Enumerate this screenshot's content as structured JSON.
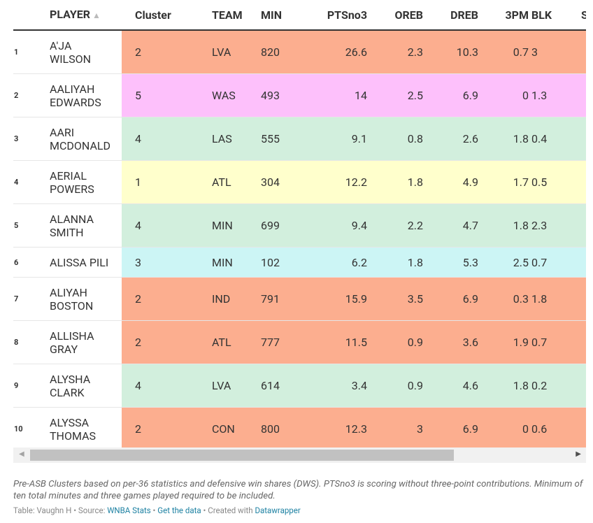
{
  "colors": {
    "cluster_1": "#ffffcc",
    "cluster_2": "#fcae8f",
    "cluster_3": "#ccf5f5",
    "cluster_4": "#d2efdd",
    "cluster_5": "#fdc0fb",
    "link": "#1d81a2"
  },
  "table": {
    "headers": {
      "player": "PLAYER",
      "sort_icon": "▲",
      "cluster": "Cluster",
      "team": "TEAM",
      "min": "MIN",
      "pts": "PTSno3",
      "oreb": "OREB",
      "dreb": "DREB",
      "tpm": "3PM",
      "blk": "BLK",
      "s": "S"
    },
    "rows": [
      {
        "rank": "1",
        "player_line1": "A'JA",
        "player_line2": "WILSON",
        "cluster": "2",
        "team": "LVA",
        "min": "820",
        "pts": "26.6",
        "oreb": "2.3",
        "dreb": "10.3",
        "tpm": "0.7",
        "blk": "3"
      },
      {
        "rank": "2",
        "player_line1": "AALIYAH",
        "player_line2": "EDWARDS",
        "cluster": "5",
        "team": "WAS",
        "min": "493",
        "pts": "14",
        "oreb": "2.5",
        "dreb": "6.9",
        "tpm": "0",
        "blk": "1.3"
      },
      {
        "rank": "3",
        "player_line1": "AARI",
        "player_line2": "MCDONALD",
        "cluster": "4",
        "team": "LAS",
        "min": "555",
        "pts": "9.1",
        "oreb": "0.8",
        "dreb": "2.6",
        "tpm": "1.8",
        "blk": "0.4"
      },
      {
        "rank": "4",
        "player_line1": "AERIAL",
        "player_line2": "POWERS",
        "cluster": "1",
        "team": "ATL",
        "min": "304",
        "pts": "12.2",
        "oreb": "1.8",
        "dreb": "4.9",
        "tpm": "1.7",
        "blk": "0.5"
      },
      {
        "rank": "5",
        "player_line1": "ALANNA",
        "player_line2": "SMITH",
        "cluster": "4",
        "team": "MIN",
        "min": "699",
        "pts": "9.4",
        "oreb": "2.2",
        "dreb": "4.7",
        "tpm": "1.8",
        "blk": "2.3"
      },
      {
        "rank": "6",
        "player_line1": "ALISSA PILI",
        "player_line2": "",
        "cluster": "3",
        "team": "MIN",
        "min": "102",
        "pts": "6.2",
        "oreb": "1.8",
        "dreb": "5.3",
        "tpm": "2.5",
        "blk": "0.7"
      },
      {
        "rank": "7",
        "player_line1": "ALIYAH",
        "player_line2": "BOSTON",
        "cluster": "2",
        "team": "IND",
        "min": "791",
        "pts": "15.9",
        "oreb": "3.5",
        "dreb": "6.9",
        "tpm": "0.3",
        "blk": "1.8"
      },
      {
        "rank": "8",
        "player_line1": "ALLISHA",
        "player_line2": "GRAY",
        "cluster": "2",
        "team": "ATL",
        "min": "777",
        "pts": "11.5",
        "oreb": "0.9",
        "dreb": "3.6",
        "tpm": "1.9",
        "blk": "0.7"
      },
      {
        "rank": "9",
        "player_line1": "ALYSHA",
        "player_line2": "CLARK",
        "cluster": "4",
        "team": "LVA",
        "min": "614",
        "pts": "3.4",
        "oreb": "0.9",
        "dreb": "4.6",
        "tpm": "1.8",
        "blk": "0.2"
      },
      {
        "rank": "10",
        "player_line1": "ALYSSA",
        "player_line2": "THOMAS",
        "cluster": "2",
        "team": "CON",
        "min": "800",
        "pts": "12.3",
        "oreb": "3",
        "dreb": "6.9",
        "tpm": "0",
        "blk": "0.6"
      }
    ]
  },
  "scrollbar": {
    "left_arrow_icon": "◀",
    "right_arrow_icon": "▶"
  },
  "notes": "Pre-ASB Clusters based on per-36 statistics and defensive win shares (DWS). PTSno3 is scoring without three-point contributions. Minimum of ten total minutes and three games played required to be included.",
  "footer": {
    "table_by": "Table: Vaughn H",
    "sep1": " • Source: ",
    "source_link": "WNBA Stats",
    "sep2": " • ",
    "get_data_link": "Get the data",
    "sep3": " • Created with ",
    "datawrapper_link": "Datawrapper"
  }
}
